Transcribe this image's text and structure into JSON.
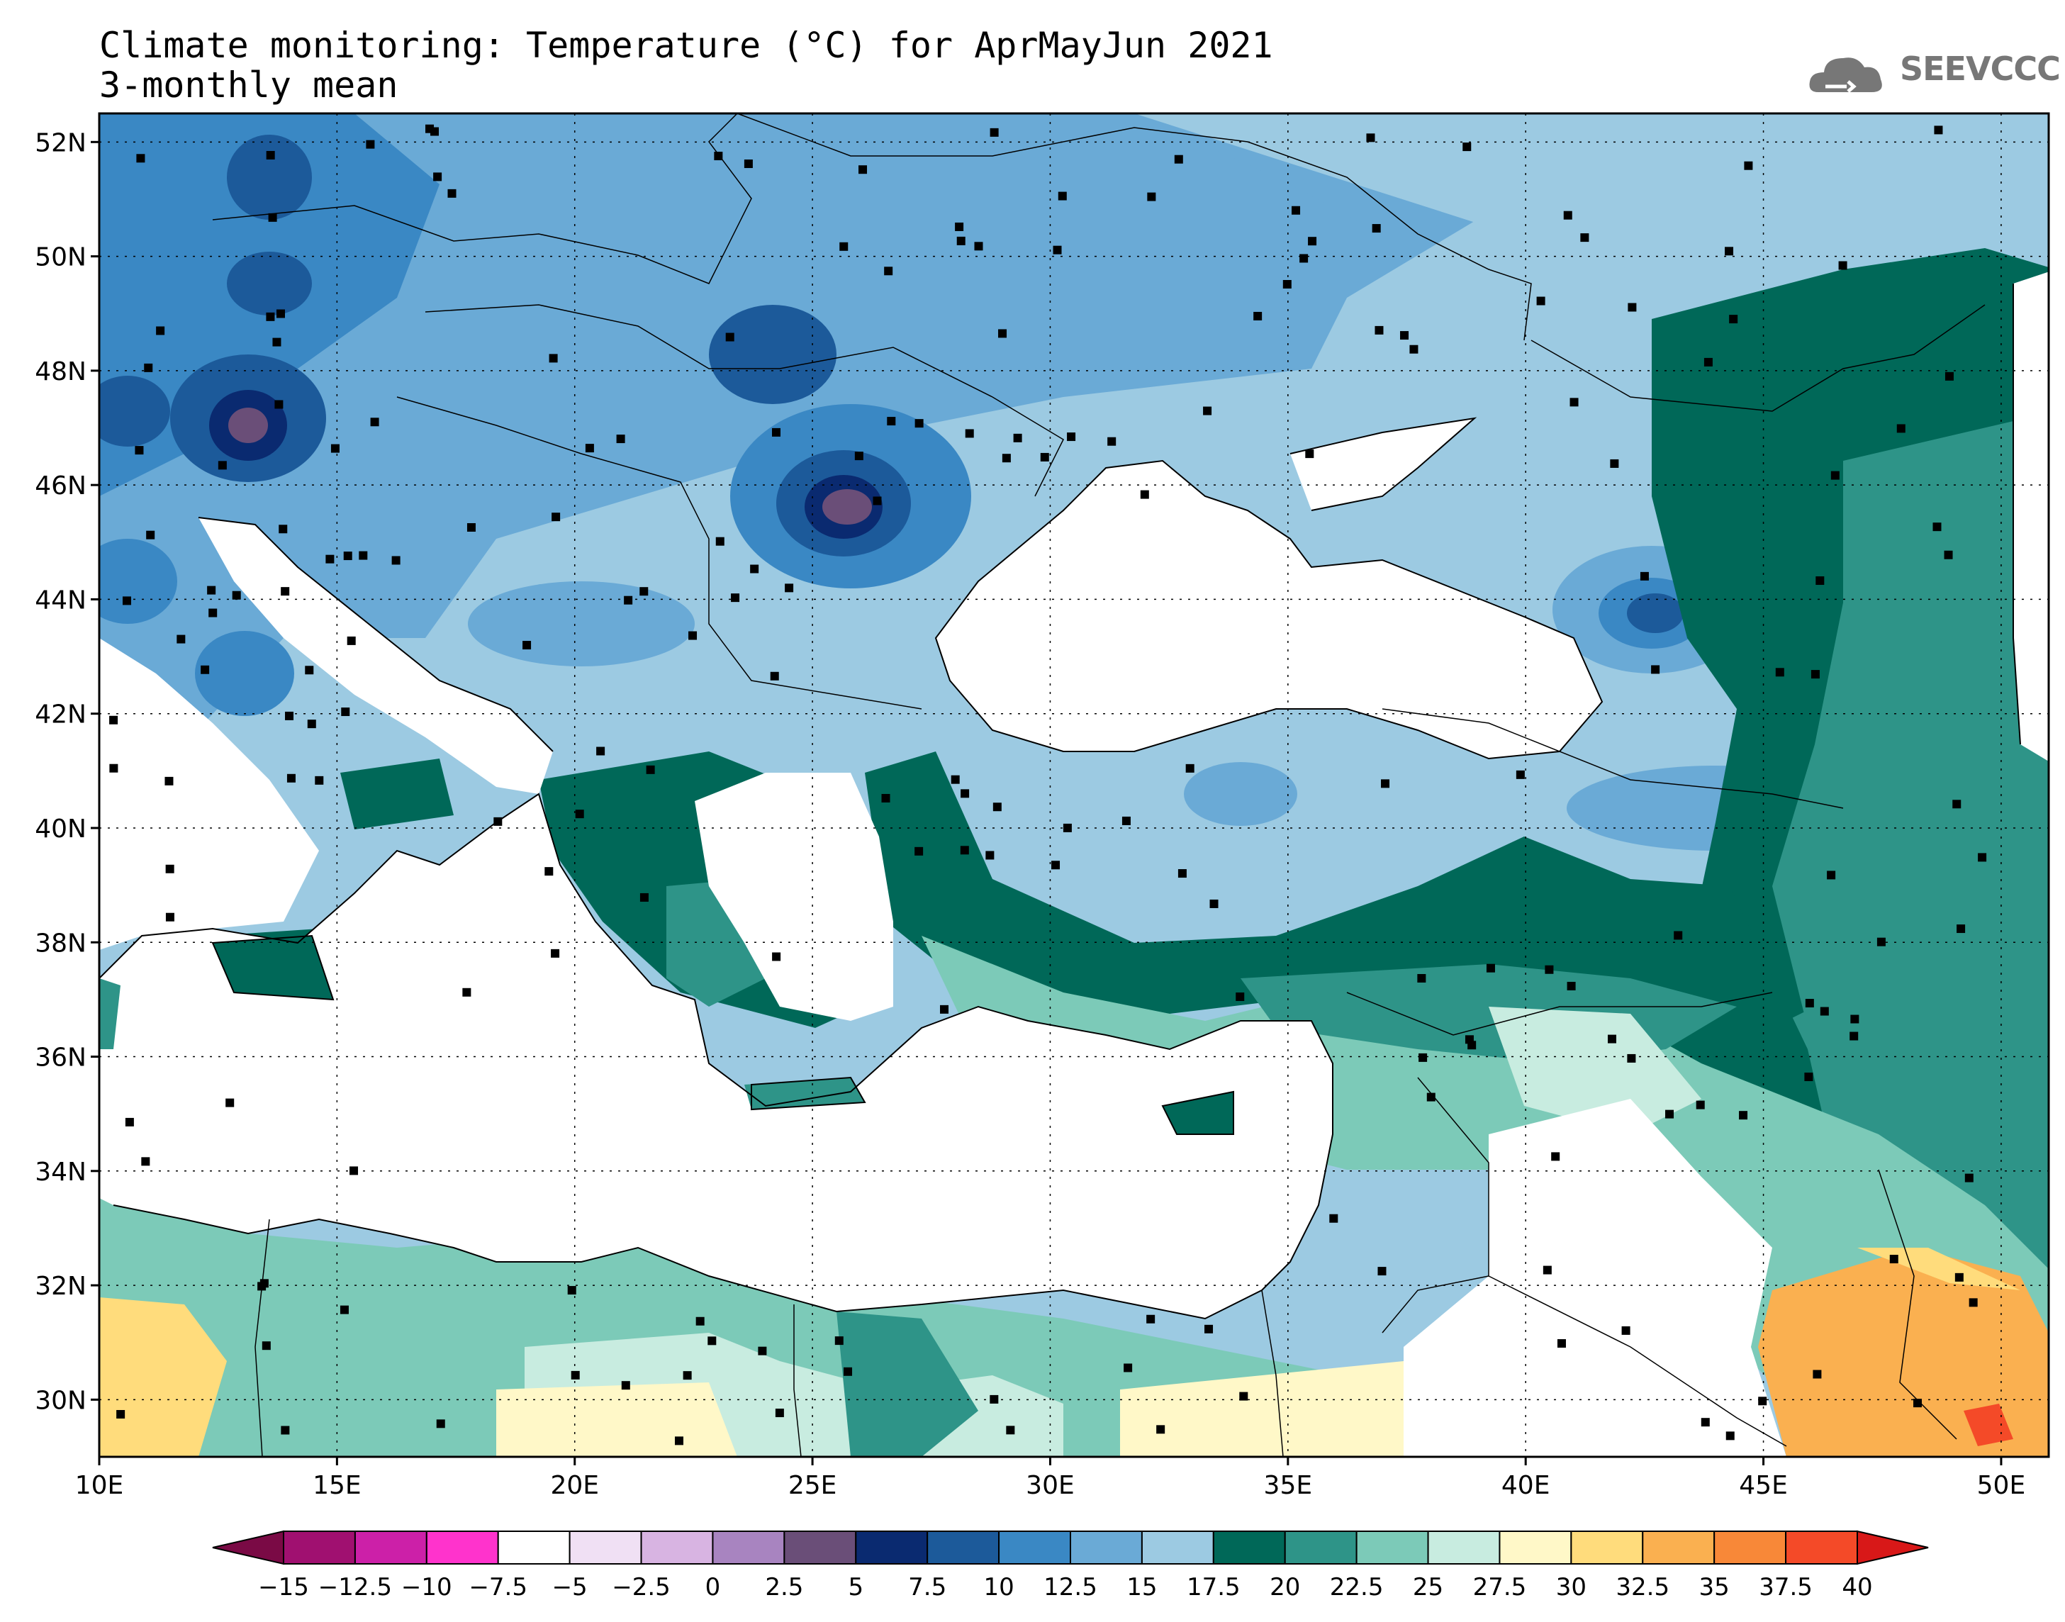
{
  "header": {
    "title": "Climate monitoring: Temperature (°C) for AprMayJun 2021",
    "subtitle": "3-monthly mean",
    "logo_text": "SEEVCCC"
  },
  "map": {
    "lon_range": [
      10,
      51
    ],
    "lat_range": [
      29,
      52.5
    ],
    "lon_labels": [
      "10E",
      "15E",
      "20E",
      "25E",
      "30E",
      "35E",
      "40E",
      "45E",
      "50E"
    ],
    "lat_labels": [
      "52N",
      "50N",
      "48N",
      "46N",
      "44N",
      "42N",
      "40N",
      "38N",
      "36N",
      "34N",
      "32N",
      "30N"
    ]
  },
  "colorbar": {
    "labels": [
      "-15",
      "-12.5",
      "-10",
      "-7.5",
      "-5",
      "-2.5",
      "0",
      "2.5",
      "5",
      "7.5",
      "10",
      "12.5",
      "15",
      "17.5",
      "20",
      "22.5",
      "25",
      "27.5",
      "30",
      "32.5",
      "35",
      "37.5",
      "40"
    ],
    "colors": [
      "#7a0a45",
      "#a01070",
      "#cc20a8",
      "#ff33cc",
      "#ffffff",
      "#f0e0f4",
      "#d8b4e2",
      "#a884c0",
      "#6a4e78",
      "#0a2a70",
      "#1c5a9a",
      "#3a88c4",
      "#6aaad6",
      "#9ccae2",
      "#006858",
      "#2e9488",
      "#7ccab8",
      "#c8ece0",
      "#fff8c8",
      "#ffdc7c",
      "#fab050",
      "#f88838",
      "#f44a28",
      "#d81818"
    ]
  },
  "palette": {
    "ocean": "#ffffff",
    "cold_region": "#6aaad6",
    "cool_region": "#9ccae2",
    "warm_region": "#7ccab8",
    "hot_region": "#fab050"
  }
}
